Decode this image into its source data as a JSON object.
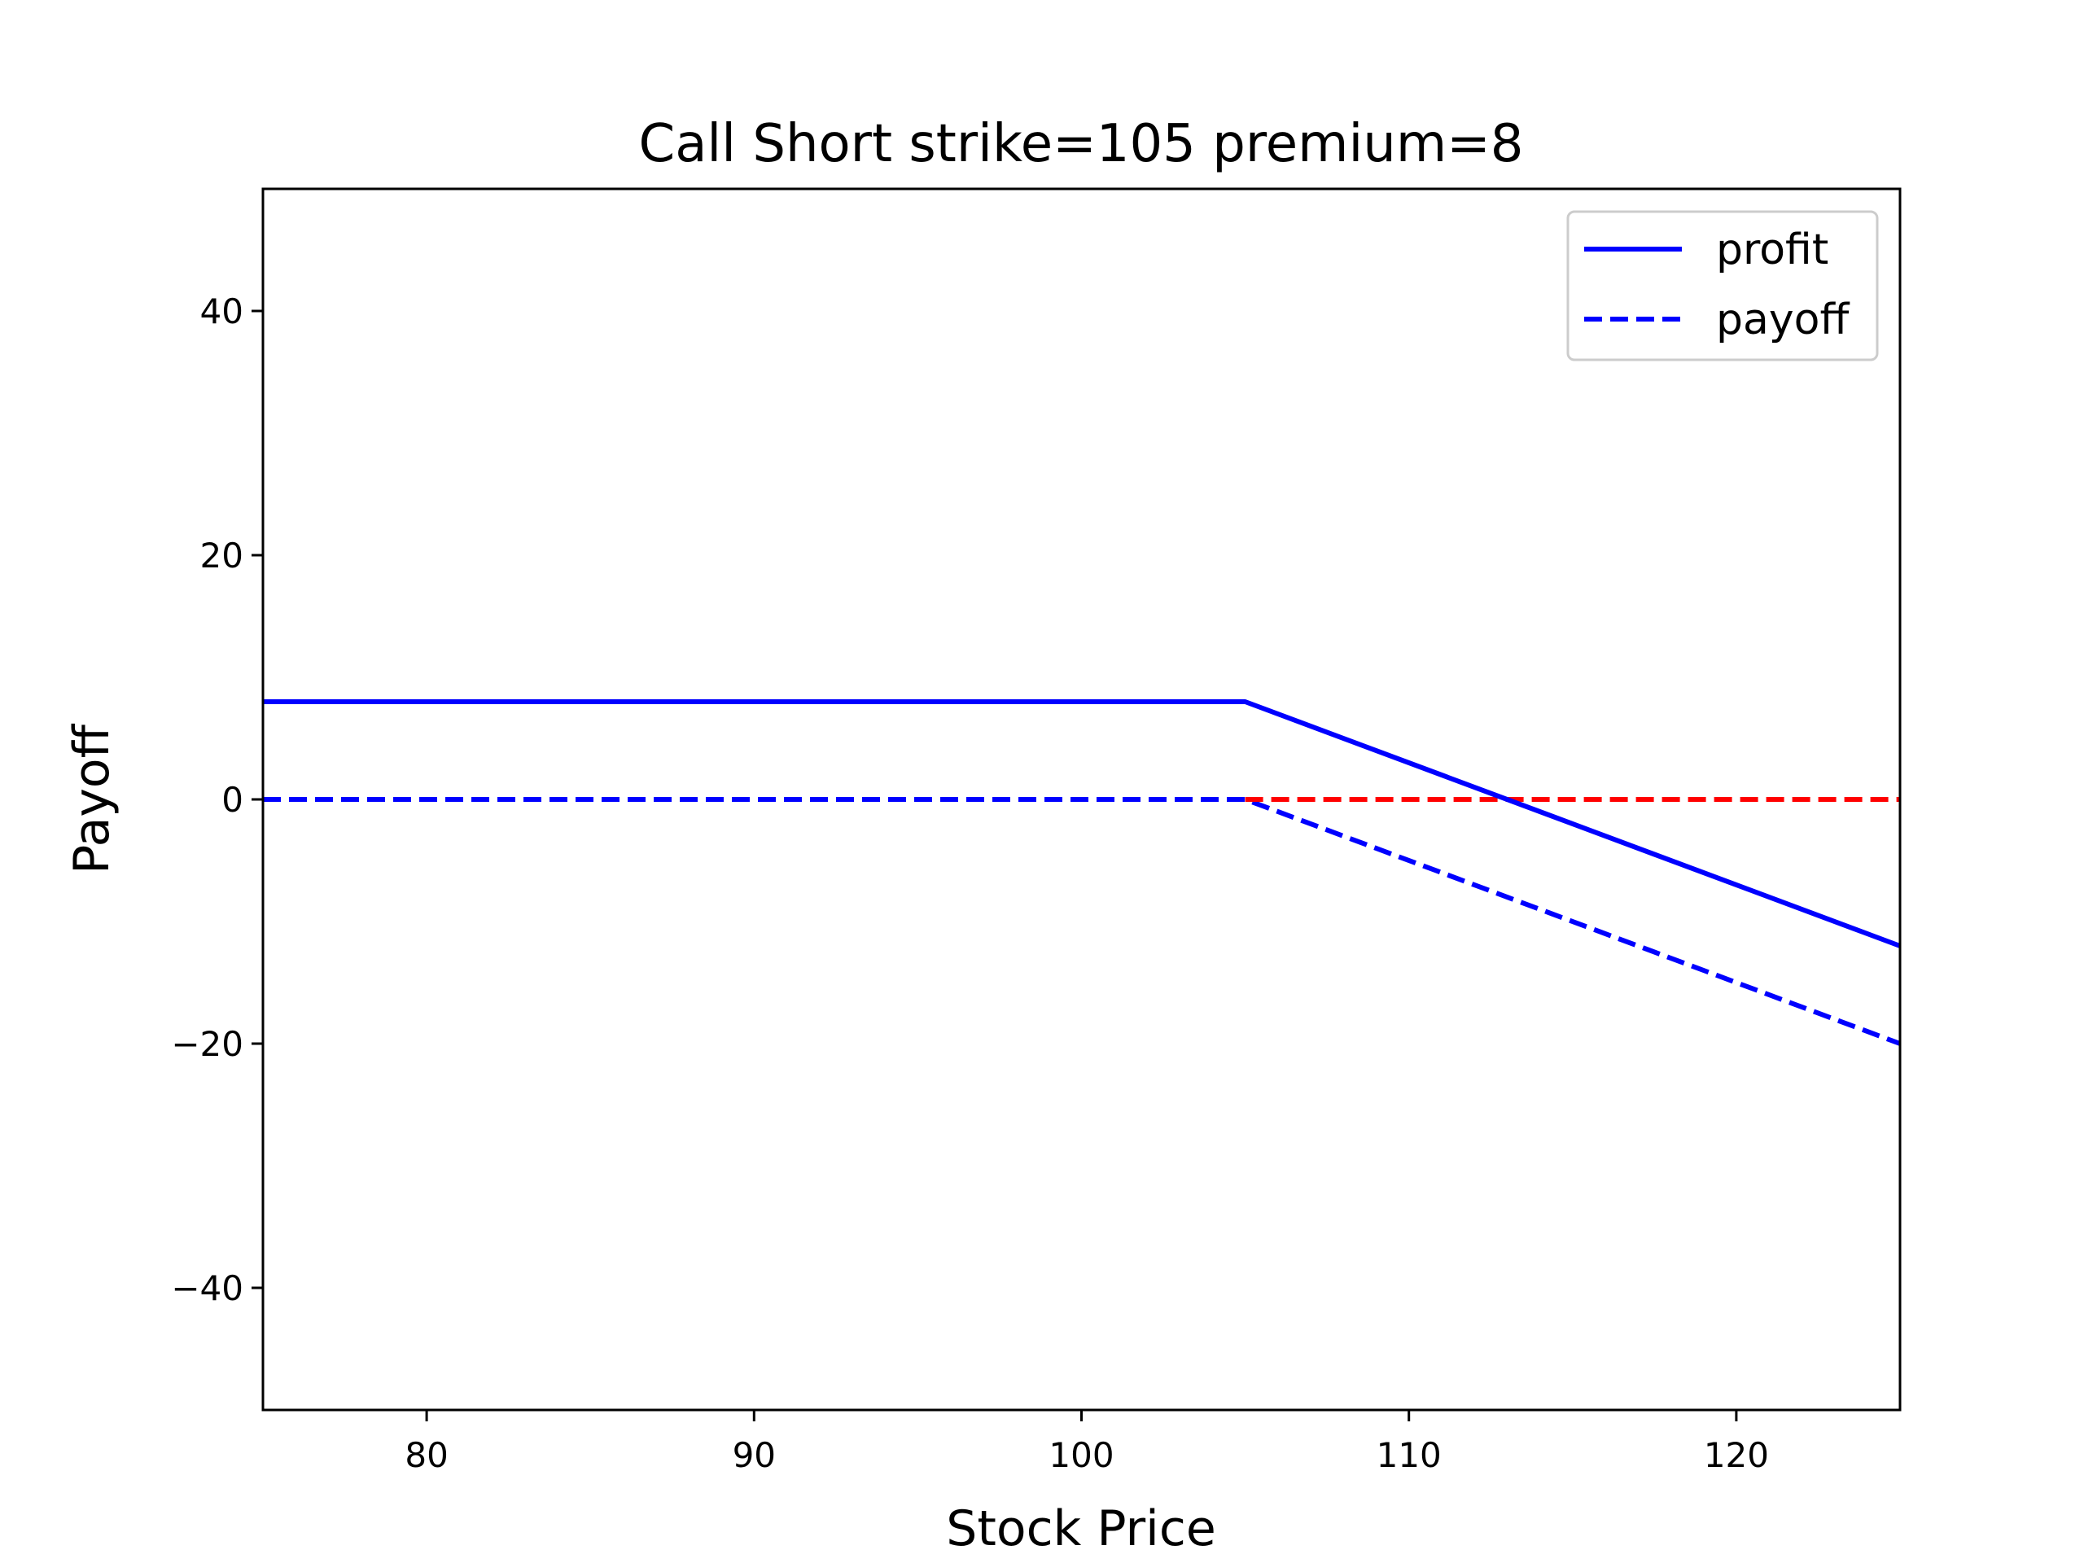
{
  "chart_data": {
    "type": "line",
    "title": "Call Short strike=105  premium=8",
    "xlabel": "Stock Price",
    "ylabel": "Payoff",
    "xlim": [
      75,
      125
    ],
    "ylim": [
      -50,
      50
    ],
    "xticks": [
      80,
      90,
      100,
      110,
      120
    ],
    "yticks": [
      -40,
      -20,
      0,
      20,
      40
    ],
    "xtick_labels": [
      "80",
      "90",
      "100",
      "110",
      "120"
    ],
    "ytick_labels": [
      "−40",
      "−20",
      "0",
      "20",
      "40"
    ],
    "grid": false,
    "legend_position": "top-right",
    "series": [
      {
        "name": "profit",
        "color": "#0000ff",
        "style": "solid",
        "x": [
          75,
          105,
          125
        ],
        "y": [
          8,
          8,
          -12
        ]
      },
      {
        "name": "payoff",
        "color": "#0000ff",
        "style": "dashed",
        "x": [
          75,
          105,
          125
        ],
        "y": [
          0,
          0,
          -20
        ]
      },
      {
        "color": "#ff0000",
        "style": "dashed",
        "x": [
          105,
          125
        ],
        "y": [
          0,
          0
        ]
      }
    ]
  }
}
